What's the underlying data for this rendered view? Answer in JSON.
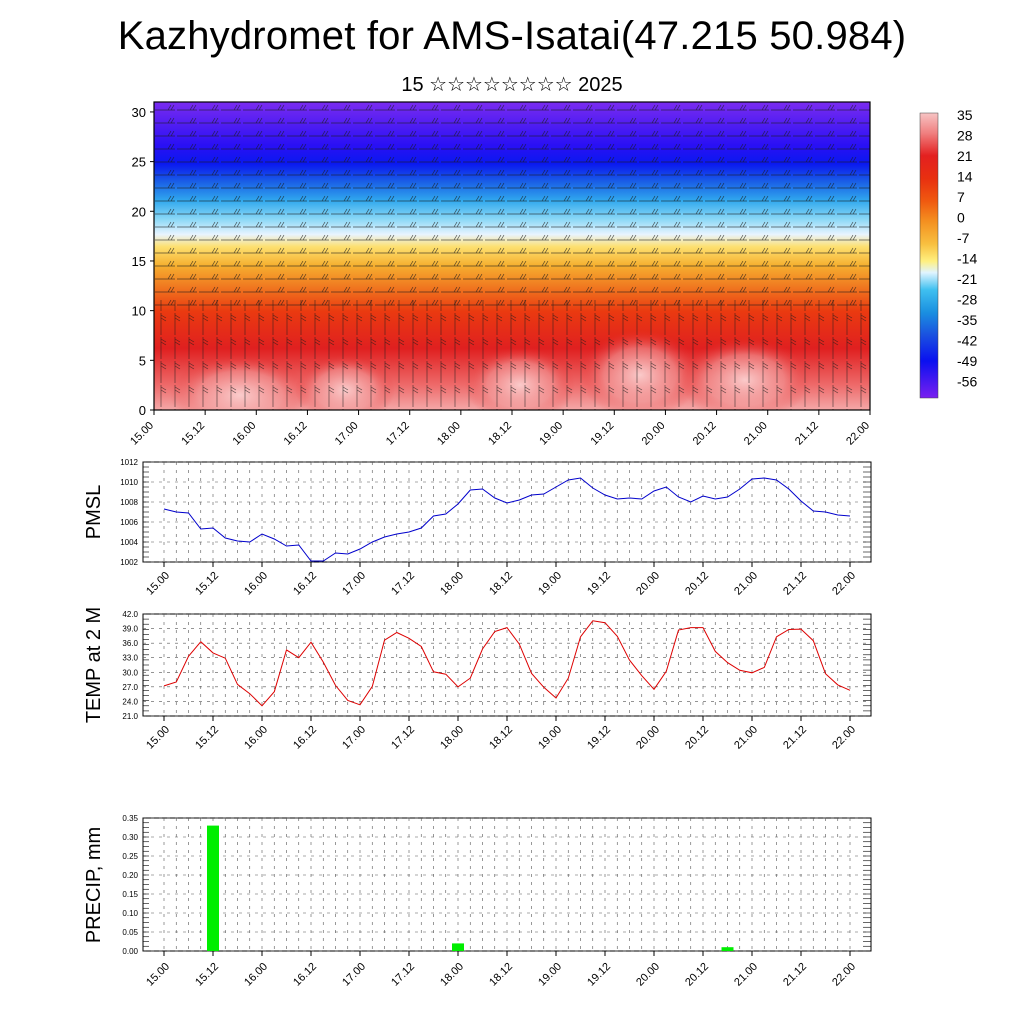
{
  "title": "Kazhydromet for AMS-Isatai(47.215 50.984)",
  "subtitle": "15 ☆☆☆☆☆☆☆☆ 2025",
  "time_labels": [
    "15.00",
    "15.12",
    "16.00",
    "16.12",
    "17.00",
    "17.12",
    "18.00",
    "18.12",
    "19.00",
    "19.12",
    "20.00",
    "20.12",
    "21.00",
    "21.12",
    "22.00"
  ],
  "chart_data": [
    {
      "type": "heatmap",
      "description_key": "cross-section",
      "xlabel": "",
      "ylabel": "",
      "y_ticks": [
        "0",
        "5",
        "10",
        "15",
        "20",
        "25",
        "30"
      ],
      "ylim": [
        0,
        31
      ],
      "colorbar": {
        "labels": [
          "35",
          "28",
          "21",
          "14",
          "7",
          "0",
          "-7",
          "-14",
          "-21",
          "-28",
          "-35",
          "-42",
          "-49",
          "-56"
        ],
        "colors": [
          "#f7c4c4",
          "#f08080",
          "#e32020",
          "#e83010",
          "#f05a10",
          "#f49020",
          "#f8c040",
          "#fff080",
          "#d0f0ff",
          "#40c0f0",
          "#1a8fe0",
          "#1a50e0",
          "#0a10f0",
          "#7a20f0"
        ]
      },
      "series": [
        {
          "layer": "surface",
          "values": [
            31,
            28,
            26,
            22,
            18,
            14,
            8,
            0,
            -20,
            -50,
            -60
          ]
        }
      ],
      "wind_barbs": true
    },
    {
      "type": "line",
      "ylabel": "PMSL",
      "ylim": [
        1002,
        1012
      ],
      "y_ticks": [
        "1002",
        "1004",
        "1006",
        "1008",
        "1010",
        "1012"
      ],
      "color": "#0000cc",
      "x": [
        0,
        3,
        6,
        9,
        12,
        15,
        18,
        21,
        24,
        27,
        30,
        33,
        36,
        39,
        42,
        45,
        48,
        51,
        54,
        57,
        60,
        63,
        66,
        69,
        72,
        75,
        78,
        81,
        84,
        87,
        90,
        93,
        96,
        99,
        102,
        105,
        108,
        111,
        114,
        117,
        120,
        123,
        126,
        129,
        132,
        135,
        138,
        141,
        144,
        147,
        150,
        153,
        156,
        159,
        162,
        165,
        168
      ],
      "values": [
        1007.3,
        1007.0,
        1006.9,
        1005.3,
        1005.4,
        1004.4,
        1004.1,
        1004.0,
        1004.8,
        1004.3,
        1003.6,
        1003.7,
        1002.1,
        1002.1,
        1002.9,
        1002.8,
        1003.3,
        1004.0,
        1004.5,
        1004.8,
        1005.0,
        1005.4,
        1006.6,
        1006.8,
        1007.8,
        1009.2,
        1009.3,
        1008.4,
        1007.9,
        1008.2,
        1008.7,
        1008.8,
        1009.5,
        1010.2,
        1010.4,
        1009.4,
        1008.7,
        1008.3,
        1008.4,
        1008.3,
        1009.1,
        1009.5,
        1008.5,
        1008.0,
        1008.6,
        1008.3,
        1008.5,
        1009.3,
        1010.3,
        1010.4,
        1010.2,
        1009.3,
        1008.1,
        1007.1,
        1007.0,
        1006.7,
        1006.6
      ]
    },
    {
      "type": "line",
      "ylabel": "TEMP at 2 M",
      "ylim": [
        21,
        42
      ],
      "y_ticks": [
        "21.0",
        "24.0",
        "27.0",
        "30.0",
        "33.0",
        "36.0",
        "39.0",
        "42.0"
      ],
      "color": "#dd0000",
      "x": [
        0,
        3,
        6,
        9,
        12,
        15,
        18,
        21,
        24,
        27,
        30,
        33,
        36,
        39,
        42,
        45,
        48,
        51,
        54,
        57,
        60,
        63,
        66,
        69,
        72,
        75,
        78,
        81,
        84,
        87,
        90,
        93,
        96,
        99,
        102,
        105,
        108,
        111,
        114,
        117,
        120,
        123,
        126,
        129,
        132,
        135,
        138,
        141,
        144,
        147,
        150,
        153,
        156,
        159,
        162,
        165,
        168
      ],
      "values": [
        27.2,
        28.0,
        33.3,
        36.3,
        34.0,
        32.9,
        27.5,
        25.6,
        23.1,
        26.0,
        34.6,
        33.0,
        36.2,
        32.1,
        27.3,
        24.2,
        23.3,
        27.1,
        36.6,
        38.2,
        37.0,
        35.3,
        30.1,
        29.6,
        27.0,
        28.8,
        34.8,
        38.4,
        39.2,
        35.8,
        29.8,
        26.9,
        24.7,
        28.8,
        37.3,
        40.6,
        40.2,
        37.4,
        32.5,
        29.3,
        26.5,
        30.2,
        38.7,
        39.2,
        39.2,
        34.3,
        32.0,
        30.4,
        29.9,
        31.0,
        37.3,
        38.8,
        38.9,
        36.5,
        29.7,
        27.4,
        26.3
      ]
    },
    {
      "type": "bar",
      "ylabel": "PRECIP, mm",
      "ylim": [
        0,
        0.35
      ],
      "y_ticks": [
        "0.00",
        "0.05",
        "0.10",
        "0.15",
        "0.20",
        "0.25",
        "0.30",
        "0.35"
      ],
      "color": "#00ee00",
      "bars": [
        {
          "x": 12,
          "value": 0.33
        },
        {
          "x": 72,
          "value": 0.02
        },
        {
          "x": 138,
          "value": 0.01
        }
      ]
    }
  ]
}
